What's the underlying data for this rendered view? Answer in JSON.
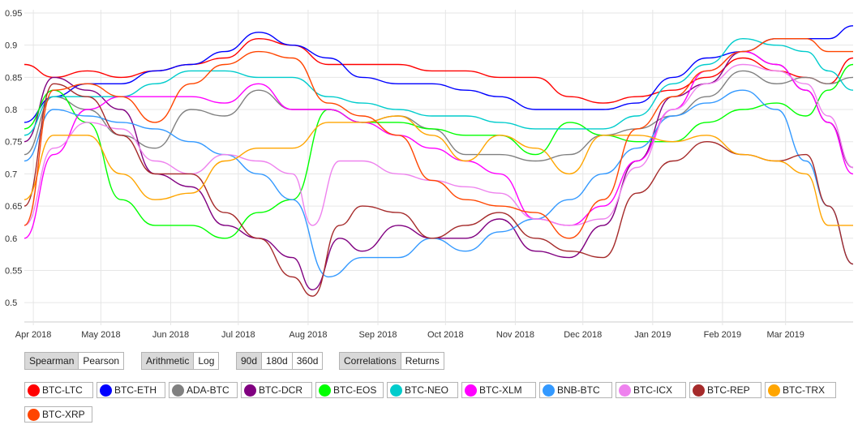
{
  "controls": {
    "method": {
      "options": [
        "Spearman",
        "Pearson"
      ],
      "selected": "Spearman"
    },
    "scale": {
      "options": [
        "Arithmetic",
        "Log"
      ],
      "selected": "Arithmetic"
    },
    "window": {
      "options": [
        "90d",
        "180d",
        "360d"
      ],
      "selected": "90d"
    },
    "mode": {
      "options": [
        "Correlations",
        "Returns"
      ],
      "selected": "Correlations"
    }
  },
  "chart_data": {
    "type": "line",
    "title": "",
    "xlabel": "",
    "ylabel": "",
    "ylim": [
      0.47,
      0.955
    ],
    "xlim": [
      "2018-03-28",
      "2019-03-31"
    ],
    "y_ticks": [
      0.5,
      0.55,
      0.6,
      0.65,
      0.7,
      0.75,
      0.8,
      0.85,
      0.9,
      0.95
    ],
    "y_tick_labels": [
      "0.5",
      "0.55",
      "0.6",
      "0.65",
      "0.7",
      "0.75",
      "0.8",
      "0.85",
      "0.9",
      "0.95"
    ],
    "x_ticks": [
      "2018-04-01",
      "2018-05-01",
      "2018-06-01",
      "2018-07-01",
      "2018-08-01",
      "2018-09-01",
      "2018-10-01",
      "2018-11-01",
      "2018-12-01",
      "2019-01-01",
      "2019-02-01",
      "2019-03-01"
    ],
    "x_tick_labels": [
      "Apr 2018",
      "May 2018",
      "Jun 2018",
      "Jul 2018",
      "Aug 2018",
      "Sep 2018",
      "Oct 2018",
      "Nov 2018",
      "Dec 2018",
      "Jan 2019",
      "Feb 2019",
      "Mar 2019"
    ],
    "grid": "both",
    "legend_position": "bottom",
    "series": [
      {
        "name": "BTC-LTC",
        "color": "#ff0000",
        "x": [
          "2018-03-28",
          "2018-04-10",
          "2018-04-25",
          "2018-05-10",
          "2018-05-25",
          "2018-06-10",
          "2018-06-25",
          "2018-07-10",
          "2018-07-25",
          "2018-08-10",
          "2018-08-25",
          "2018-09-10",
          "2018-09-25",
          "2018-10-10",
          "2018-10-25",
          "2018-11-10",
          "2018-11-25",
          "2018-12-10",
          "2018-12-25",
          "2019-01-10",
          "2019-01-25",
          "2019-02-10",
          "2019-02-25",
          "2019-03-10",
          "2019-03-20",
          "2019-03-31"
        ],
        "y": [
          0.87,
          0.85,
          0.86,
          0.85,
          0.86,
          0.87,
          0.88,
          0.91,
          0.9,
          0.87,
          0.87,
          0.87,
          0.86,
          0.86,
          0.85,
          0.85,
          0.82,
          0.81,
          0.82,
          0.83,
          0.85,
          0.88,
          0.86,
          0.85,
          0.84,
          0.88
        ]
      },
      {
        "name": "BTC-ETH",
        "color": "#0000ff",
        "x": [
          "2018-03-28",
          "2018-04-10",
          "2018-04-25",
          "2018-05-10",
          "2018-05-25",
          "2018-06-10",
          "2018-06-25",
          "2018-07-10",
          "2018-07-25",
          "2018-08-10",
          "2018-08-25",
          "2018-09-10",
          "2018-09-25",
          "2018-10-10",
          "2018-10-25",
          "2018-11-10",
          "2018-11-25",
          "2018-12-10",
          "2018-12-25",
          "2019-01-10",
          "2019-01-25",
          "2019-02-10",
          "2019-02-25",
          "2019-03-10",
          "2019-03-20",
          "2019-03-31"
        ],
        "y": [
          0.78,
          0.82,
          0.84,
          0.84,
          0.86,
          0.87,
          0.89,
          0.92,
          0.9,
          0.88,
          0.85,
          0.84,
          0.84,
          0.83,
          0.82,
          0.8,
          0.8,
          0.8,
          0.81,
          0.85,
          0.88,
          0.89,
          0.91,
          0.91,
          0.91,
          0.93
        ]
      },
      {
        "name": "ADA-BTC",
        "color": "#808080",
        "x": [
          "2018-03-28",
          "2018-04-10",
          "2018-04-25",
          "2018-05-10",
          "2018-05-25",
          "2018-06-10",
          "2018-06-25",
          "2018-07-10",
          "2018-07-25",
          "2018-08-10",
          "2018-08-25",
          "2018-09-10",
          "2018-09-25",
          "2018-10-10",
          "2018-10-25",
          "2018-11-10",
          "2018-11-25",
          "2018-12-10",
          "2018-12-25",
          "2019-01-10",
          "2019-01-25",
          "2019-02-10",
          "2019-02-25",
          "2019-03-10",
          "2019-03-20",
          "2019-03-31"
        ],
        "y": [
          0.73,
          0.82,
          0.8,
          0.76,
          0.74,
          0.8,
          0.79,
          0.83,
          0.8,
          0.8,
          0.78,
          0.79,
          0.77,
          0.73,
          0.73,
          0.72,
          0.73,
          0.76,
          0.77,
          0.79,
          0.82,
          0.86,
          0.84,
          0.85,
          0.84,
          0.85
        ]
      },
      {
        "name": "BTC-DCR",
        "color": "#800080",
        "x": [
          "2018-03-28",
          "2018-04-10",
          "2018-04-25",
          "2018-05-10",
          "2018-05-25",
          "2018-06-10",
          "2018-06-25",
          "2018-07-10",
          "2018-07-25",
          "2018-08-03",
          "2018-08-15",
          "2018-08-25",
          "2018-09-10",
          "2018-09-25",
          "2018-10-10",
          "2018-10-25",
          "2018-11-10",
          "2018-11-25",
          "2018-12-10",
          "2018-12-25",
          "2019-01-10",
          "2019-01-25",
          "2019-02-10",
          "2019-02-25",
          "2019-03-10",
          "2019-03-20",
          "2019-03-31"
        ],
        "y": [
          0.75,
          0.85,
          0.83,
          0.8,
          0.7,
          0.68,
          0.62,
          0.6,
          0.57,
          0.52,
          0.6,
          0.58,
          0.62,
          0.6,
          0.6,
          0.63,
          0.58,
          0.57,
          0.62,
          0.72,
          0.82,
          0.84,
          0.89,
          0.87,
          0.83,
          0.78,
          0.71
        ]
      },
      {
        "name": "BTC-EOS",
        "color": "#00ff00",
        "x": [
          "2018-03-28",
          "2018-04-10",
          "2018-04-25",
          "2018-05-10",
          "2018-05-25",
          "2018-06-10",
          "2018-06-25",
          "2018-07-10",
          "2018-07-25",
          "2018-08-10",
          "2018-08-25",
          "2018-09-10",
          "2018-09-25",
          "2018-10-10",
          "2018-10-25",
          "2018-11-10",
          "2018-11-25",
          "2018-12-10",
          "2018-12-25",
          "2019-01-10",
          "2019-01-25",
          "2019-02-10",
          "2019-02-25",
          "2019-03-10",
          "2019-03-20",
          "2019-03-31"
        ],
        "y": [
          0.77,
          0.83,
          0.78,
          0.66,
          0.62,
          0.62,
          0.6,
          0.64,
          0.66,
          0.8,
          0.78,
          0.78,
          0.77,
          0.76,
          0.76,
          0.73,
          0.78,
          0.76,
          0.75,
          0.75,
          0.78,
          0.8,
          0.81,
          0.79,
          0.83,
          0.87
        ]
      },
      {
        "name": "BTC-NEO",
        "color": "#00cccc",
        "x": [
          "2018-03-28",
          "2018-04-10",
          "2018-04-25",
          "2018-05-10",
          "2018-05-25",
          "2018-06-10",
          "2018-06-25",
          "2018-07-10",
          "2018-07-25",
          "2018-08-10",
          "2018-08-25",
          "2018-09-10",
          "2018-09-25",
          "2018-10-10",
          "2018-10-25",
          "2018-11-10",
          "2018-11-25",
          "2018-12-10",
          "2018-12-25",
          "2019-01-10",
          "2019-01-25",
          "2019-02-10",
          "2019-02-25",
          "2019-03-10",
          "2019-03-20",
          "2019-03-31"
        ],
        "y": [
          0.76,
          0.82,
          0.82,
          0.82,
          0.84,
          0.86,
          0.86,
          0.85,
          0.85,
          0.82,
          0.81,
          0.8,
          0.79,
          0.79,
          0.78,
          0.77,
          0.77,
          0.77,
          0.79,
          0.84,
          0.87,
          0.91,
          0.9,
          0.89,
          0.86,
          0.83
        ]
      },
      {
        "name": "BTC-XLM",
        "color": "#ff00ff",
        "x": [
          "2018-03-28",
          "2018-04-10",
          "2018-04-25",
          "2018-05-10",
          "2018-05-25",
          "2018-06-10",
          "2018-06-25",
          "2018-07-10",
          "2018-07-25",
          "2018-08-10",
          "2018-08-25",
          "2018-09-10",
          "2018-09-25",
          "2018-10-10",
          "2018-10-25",
          "2018-11-10",
          "2018-11-25",
          "2018-12-10",
          "2018-12-25",
          "2019-01-10",
          "2019-01-25",
          "2019-02-10",
          "2019-02-25",
          "2019-03-10",
          "2019-03-20",
          "2019-03-31"
        ],
        "y": [
          0.6,
          0.73,
          0.8,
          0.82,
          0.82,
          0.82,
          0.81,
          0.84,
          0.8,
          0.8,
          0.78,
          0.76,
          0.74,
          0.72,
          0.7,
          0.63,
          0.62,
          0.65,
          0.72,
          0.8,
          0.86,
          0.89,
          0.87,
          0.83,
          0.78,
          0.7
        ]
      },
      {
        "name": "BNB-BTC",
        "color": "#3399ff",
        "x": [
          "2018-03-28",
          "2018-04-10",
          "2018-04-25",
          "2018-05-10",
          "2018-05-25",
          "2018-06-10",
          "2018-06-25",
          "2018-07-10",
          "2018-07-25",
          "2018-08-10",
          "2018-08-25",
          "2018-09-10",
          "2018-09-25",
          "2018-10-10",
          "2018-10-25",
          "2018-11-10",
          "2018-11-25",
          "2018-12-10",
          "2018-12-25",
          "2019-01-10",
          "2019-01-25",
          "2019-02-10",
          "2019-02-25",
          "2019-03-10",
          "2019-03-20",
          "2019-03-31"
        ],
        "y": [
          0.72,
          0.8,
          0.79,
          0.78,
          0.77,
          0.75,
          0.73,
          0.7,
          0.66,
          0.54,
          0.57,
          0.57,
          0.6,
          0.58,
          0.61,
          0.63,
          0.66,
          0.7,
          0.74,
          0.79,
          0.81,
          0.83,
          0.8,
          0.72,
          0.65,
          0.56
        ]
      },
      {
        "name": "BTC-ICX",
        "color": "#ee82ee",
        "x": [
          "2018-03-28",
          "2018-04-10",
          "2018-04-25",
          "2018-05-10",
          "2018-05-25",
          "2018-06-10",
          "2018-06-25",
          "2018-07-10",
          "2018-07-25",
          "2018-08-03",
          "2018-08-15",
          "2018-08-25",
          "2018-09-10",
          "2018-09-25",
          "2018-10-10",
          "2018-10-25",
          "2018-11-10",
          "2018-11-25",
          "2018-12-10",
          "2018-12-25",
          "2019-01-10",
          "2019-01-25",
          "2019-02-10",
          "2019-02-25",
          "2019-03-10",
          "2019-03-20",
          "2019-03-31"
        ],
        "y": [
          0.62,
          0.74,
          0.78,
          0.77,
          0.72,
          0.7,
          0.73,
          0.72,
          0.7,
          0.62,
          0.72,
          0.72,
          0.7,
          0.69,
          0.68,
          0.67,
          0.63,
          0.62,
          0.63,
          0.71,
          0.8,
          0.84,
          0.87,
          0.86,
          0.84,
          0.79,
          0.71
        ]
      },
      {
        "name": "BTC-REP",
        "color": "#a52a2a",
        "x": [
          "2018-03-28",
          "2018-04-10",
          "2018-04-25",
          "2018-05-10",
          "2018-05-25",
          "2018-06-10",
          "2018-06-25",
          "2018-07-10",
          "2018-07-25",
          "2018-08-03",
          "2018-08-15",
          "2018-08-25",
          "2018-09-10",
          "2018-09-25",
          "2018-10-10",
          "2018-10-25",
          "2018-11-10",
          "2018-11-25",
          "2018-12-10",
          "2018-12-25",
          "2019-01-10",
          "2019-01-25",
          "2019-02-10",
          "2019-02-25",
          "2019-03-10",
          "2019-03-20",
          "2019-03-31"
        ],
        "y": [
          0.65,
          0.84,
          0.82,
          0.76,
          0.7,
          0.7,
          0.64,
          0.6,
          0.54,
          0.51,
          0.62,
          0.65,
          0.64,
          0.6,
          0.62,
          0.64,
          0.6,
          0.58,
          0.57,
          0.67,
          0.72,
          0.75,
          0.73,
          0.72,
          0.73,
          0.65,
          0.56
        ]
      },
      {
        "name": "BTC-TRX",
        "color": "#ffa500",
        "x": [
          "2018-03-28",
          "2018-04-10",
          "2018-04-25",
          "2018-05-10",
          "2018-05-25",
          "2018-06-10",
          "2018-06-25",
          "2018-07-10",
          "2018-07-25",
          "2018-08-10",
          "2018-08-25",
          "2018-09-10",
          "2018-09-25",
          "2018-10-10",
          "2018-10-25",
          "2018-11-10",
          "2018-11-25",
          "2018-12-10",
          "2018-12-25",
          "2019-01-10",
          "2019-01-25",
          "2019-02-10",
          "2019-02-25",
          "2019-03-10",
          "2019-03-20",
          "2019-03-31"
        ],
        "y": [
          0.66,
          0.76,
          0.76,
          0.7,
          0.66,
          0.67,
          0.72,
          0.74,
          0.74,
          0.78,
          0.78,
          0.79,
          0.76,
          0.72,
          0.76,
          0.74,
          0.7,
          0.76,
          0.76,
          0.75,
          0.76,
          0.73,
          0.72,
          0.7,
          0.62,
          0.62
        ]
      },
      {
        "name": "BTC-XRP",
        "color": "#ff4500",
        "x": [
          "2018-03-28",
          "2018-04-10",
          "2018-04-25",
          "2018-05-10",
          "2018-05-25",
          "2018-06-10",
          "2018-06-25",
          "2018-07-10",
          "2018-07-25",
          "2018-08-10",
          "2018-08-25",
          "2018-09-10",
          "2018-09-25",
          "2018-10-10",
          "2018-10-25",
          "2018-11-10",
          "2018-11-25",
          "2018-12-10",
          "2018-12-25",
          "2019-01-10",
          "2019-01-25",
          "2019-02-10",
          "2019-02-25",
          "2019-03-10",
          "2019-03-20",
          "2019-03-31"
        ],
        "y": [
          0.62,
          0.83,
          0.84,
          0.82,
          0.78,
          0.84,
          0.87,
          0.89,
          0.88,
          0.81,
          0.79,
          0.76,
          0.69,
          0.66,
          0.65,
          0.64,
          0.6,
          0.66,
          0.77,
          0.82,
          0.86,
          0.89,
          0.91,
          0.91,
          0.89,
          0.89
        ]
      }
    ]
  }
}
